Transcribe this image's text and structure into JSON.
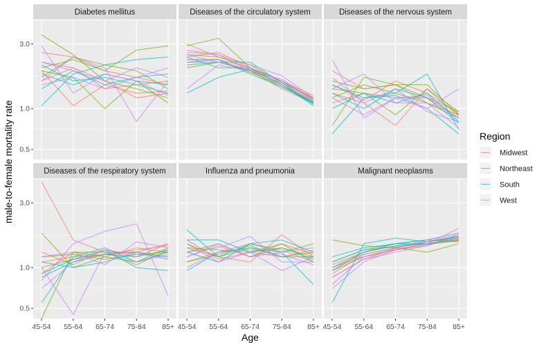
{
  "chart_data": {
    "type": "line",
    "facet_layout": "2x3 grid",
    "scale_y": "log",
    "ylim": [
      0.42,
      4.5
    ],
    "y_ticks": [
      0.5,
      1.0,
      3.0
    ],
    "y_tick_labels": [
      "0.5",
      "1.0",
      "3.0"
    ],
    "categories": [
      "45-54",
      "55-64",
      "65-74",
      "75-84",
      "85+"
    ],
    "xlabel": "Age",
    "ylabel": "male-to-female mortality rate",
    "grid": true,
    "legend": {
      "title": "Region",
      "placement": "right",
      "entries": [
        "Midwest",
        "Northeast",
        "South",
        "West"
      ]
    },
    "colors": {
      "Midwest": "#F8766D",
      "Northeast": "#7CAE00",
      "South": "#00BFC4",
      "West": "#C77CFF",
      "panel_background": "#EBEBEB",
      "strip_background": "#D9D9D9",
      "grid": "#FFFFFF"
    },
    "facets": [
      {
        "title": "Diabetes mellitus",
        "series": [
          {
            "region": "Midwest",
            "values": [
              2.6,
              2.4,
              1.9,
              1.7,
              1.5
            ]
          },
          {
            "region": "Midwest",
            "values": [
              1.9,
              1.05,
              1.5,
              1.3,
              1.35
            ]
          },
          {
            "region": "Midwest",
            "values": [
              2.2,
              2.0,
              1.6,
              1.2,
              1.3
            ]
          },
          {
            "region": "Midwest",
            "values": [
              1.6,
              2.0,
              1.4,
              1.5,
              1.6
            ]
          },
          {
            "region": "Northeast",
            "values": [
              3.5,
              2.5,
              1.6,
              1.4,
              1.2
            ]
          },
          {
            "region": "Northeast",
            "values": [
              2.0,
              2.3,
              1.9,
              2.7,
              2.9
            ]
          },
          {
            "region": "Northeast",
            "values": [
              1.9,
              1.7,
              1.0,
              1.6,
              1.1
            ]
          },
          {
            "region": "Northeast",
            "values": [
              1.7,
              2.4,
              2.1,
              1.9,
              1.4
            ]
          },
          {
            "region": "South",
            "values": [
              1.05,
              1.8,
              2.1,
              2.3,
              2.4
            ]
          },
          {
            "region": "South",
            "values": [
              2.1,
              1.6,
              1.7,
              1.5,
              1.3
            ]
          },
          {
            "region": "South",
            "values": [
              1.4,
              1.9,
              1.5,
              1.7,
              1.8
            ]
          },
          {
            "region": "South",
            "values": [
              1.8,
              1.5,
              1.8,
              1.6,
              1.5
            ]
          },
          {
            "region": "West",
            "values": [
              2.9,
              1.3,
              1.8,
              1.6,
              1.25
            ]
          },
          {
            "region": "West",
            "values": [
              1.6,
              2.4,
              2.0,
              0.8,
              1.6
            ]
          },
          {
            "region": "West",
            "values": [
              2.2,
              1.9,
              1.6,
              2.0,
              1.7
            ]
          },
          {
            "region": "West",
            "values": [
              1.5,
              1.7,
              1.4,
              1.7,
              2.0
            ]
          }
        ]
      },
      {
        "title": "Diseases of the circulatory system",
        "series": [
          {
            "region": "Midwest",
            "values": [
              2.7,
              2.5,
              1.9,
              1.55,
              1.2
            ]
          },
          {
            "region": "Midwest",
            "values": [
              2.4,
              2.6,
              2.0,
              1.5,
              1.15
            ]
          },
          {
            "region": "Midwest",
            "values": [
              2.2,
              2.2,
              1.9,
              1.4,
              1.1
            ]
          },
          {
            "region": "Midwest",
            "values": [
              3.0,
              2.4,
              2.0,
              1.6,
              1.25
            ]
          },
          {
            "region": "Northeast",
            "values": [
              2.9,
              3.3,
              2.0,
              1.6,
              1.2
            ]
          },
          {
            "region": "Northeast",
            "values": [
              2.5,
              2.4,
              2.1,
              1.55,
              1.18
            ]
          },
          {
            "region": "Northeast",
            "values": [
              2.3,
              2.3,
              1.85,
              1.5,
              1.1
            ]
          },
          {
            "region": "Northeast",
            "values": [
              2.0,
              2.2,
              1.9,
              1.45,
              1.12
            ]
          },
          {
            "region": "South",
            "values": [
              1.3,
              1.7,
              1.95,
              1.5,
              1.05
            ]
          },
          {
            "region": "South",
            "values": [
              2.1,
              2.2,
              2.2,
              1.55,
              1.1
            ]
          },
          {
            "region": "South",
            "values": [
              2.4,
              2.0,
              2.0,
              1.5,
              1.08
            ]
          },
          {
            "region": "South",
            "values": [
              2.2,
              2.3,
              1.8,
              1.45,
              1.1
            ]
          },
          {
            "region": "West",
            "values": [
              1.4,
              2.1,
              1.9,
              1.65,
              1.15
            ]
          },
          {
            "region": "West",
            "values": [
              2.6,
              2.5,
              2.1,
              1.75,
              1.2
            ]
          },
          {
            "region": "West",
            "values": [
              2.3,
              2.3,
              2.0,
              1.5,
              1.13
            ]
          },
          {
            "region": "West",
            "values": [
              2.5,
              2.2,
              1.95,
              1.6,
              1.15
            ]
          }
        ]
      },
      {
        "title": "Diseases of the nervous system",
        "series": [
          {
            "region": "Midwest",
            "values": [
              1.3,
              1.1,
              0.75,
              1.4,
              0.95
            ]
          },
          {
            "region": "Midwest",
            "values": [
              1.9,
              1.4,
              1.5,
              1.1,
              0.9
            ]
          },
          {
            "region": "Midwest",
            "values": [
              1.1,
              1.3,
              1.2,
              1.2,
              0.85
            ]
          },
          {
            "region": "Midwest",
            "values": [
              1.5,
              1.15,
              1.6,
              1.3,
              0.92
            ]
          },
          {
            "region": "Northeast",
            "values": [
              0.75,
              1.7,
              1.5,
              1.5,
              0.9
            ]
          },
          {
            "region": "Northeast",
            "values": [
              1.4,
              1.3,
              0.9,
              1.4,
              0.88
            ]
          },
          {
            "region": "Northeast",
            "values": [
              1.2,
              1.5,
              1.3,
              1.1,
              0.85
            ]
          },
          {
            "region": "Northeast",
            "values": [
              1.6,
              1.4,
              1.5,
              1.2,
              0.95
            ]
          },
          {
            "region": "South",
            "values": [
              0.65,
              1.2,
              1.3,
              1.8,
              0.7
            ]
          },
          {
            "region": "South",
            "values": [
              1.3,
              1.0,
              1.4,
              1.2,
              0.78
            ]
          },
          {
            "region": "South",
            "values": [
              1.0,
              1.3,
              1.1,
              1.3,
              0.8
            ]
          },
          {
            "region": "South",
            "values": [
              1.5,
              1.2,
              1.25,
              1.0,
              0.65
            ]
          },
          {
            "region": "West",
            "values": [
              2.3,
              0.85,
              1.2,
              1.0,
              1.4
            ]
          },
          {
            "region": "West",
            "values": [
              1.4,
              1.8,
              1.1,
              1.1,
              0.72
            ]
          },
          {
            "region": "West",
            "values": [
              1.7,
              1.1,
              1.4,
              0.95,
              0.8
            ]
          },
          {
            "region": "West",
            "values": [
              1.2,
              0.9,
              1.2,
              1.25,
              0.85
            ]
          }
        ]
      },
      {
        "title": "Diseases of the respiratory system",
        "series": [
          {
            "region": "Midwest",
            "values": [
              4.3,
              1.6,
              1.3,
              1.3,
              1.5
            ]
          },
          {
            "region": "Midwest",
            "values": [
              1.1,
              1.2,
              1.25,
              1.35,
              1.45
            ]
          },
          {
            "region": "Midwest",
            "values": [
              0.9,
              1.3,
              1.2,
              1.4,
              1.3
            ]
          },
          {
            "region": "Midwest",
            "values": [
              1.3,
              1.05,
              1.35,
              1.2,
              1.5
            ]
          },
          {
            "region": "Northeast",
            "values": [
              1.8,
              1.0,
              1.2,
              1.1,
              1.4
            ]
          },
          {
            "region": "Northeast",
            "values": [
              0.42,
              1.3,
              1.3,
              1.05,
              1.35
            ]
          },
          {
            "region": "Northeast",
            "values": [
              1.0,
              1.15,
              1.25,
              1.3,
              1.2
            ]
          },
          {
            "region": "Northeast",
            "values": [
              1.2,
              1.25,
              1.15,
              1.25,
              1.3
            ]
          },
          {
            "region": "South",
            "values": [
              0.55,
              1.2,
              1.4,
              1.1,
              1.3
            ]
          },
          {
            "region": "South",
            "values": [
              0.9,
              1.15,
              1.35,
              1.0,
              0.95
            ]
          },
          {
            "region": "South",
            "values": [
              1.1,
              1.0,
              1.1,
              1.3,
              1.15
            ]
          },
          {
            "region": "South",
            "values": [
              0.85,
              1.1,
              1.25,
              1.2,
              1.35
            ]
          },
          {
            "region": "West",
            "values": [
              0.8,
              1.5,
              1.85,
              2.1,
              0.62
            ]
          },
          {
            "region": "West",
            "values": [
              1.0,
              0.45,
              1.3,
              1.1,
              1.25
            ]
          },
          {
            "region": "West",
            "values": [
              1.2,
              1.3,
              1.05,
              1.55,
              1.4
            ]
          },
          {
            "region": "West",
            "values": [
              0.7,
              1.1,
              1.35,
              1.25,
              1.2
            ]
          }
        ]
      },
      {
        "title": "Influenza and pneumonia",
        "series": [
          {
            "region": "Midwest",
            "values": [
              1.4,
              1.2,
              1.1,
              1.75,
              1.2
            ]
          },
          {
            "region": "Midwest",
            "values": [
              1.1,
              1.3,
              1.5,
              1.35,
              1.1
            ]
          },
          {
            "region": "Midwest",
            "values": [
              1.6,
              1.15,
              1.3,
              1.2,
              1.35
            ]
          },
          {
            "region": "Midwest",
            "values": [
              1.2,
              1.45,
              1.2,
              1.5,
              1.25
            ]
          },
          {
            "region": "Northeast",
            "values": [
              1.5,
              1.2,
              1.4,
              1.3,
              1.5
            ]
          },
          {
            "region": "Northeast",
            "values": [
              1.3,
              1.5,
              1.2,
              1.4,
              1.2
            ]
          },
          {
            "region": "Northeast",
            "values": [
              1.1,
              1.25,
              1.45,
              1.2,
              1.3
            ]
          },
          {
            "region": "Northeast",
            "values": [
              1.4,
              1.35,
              1.3,
              1.5,
              1.1
            ]
          },
          {
            "region": "South",
            "values": [
              1.9,
              1.2,
              1.5,
              1.3,
              0.75
            ]
          },
          {
            "region": "South",
            "values": [
              0.95,
              1.3,
              1.4,
              1.2,
              1.2
            ]
          },
          {
            "region": "South",
            "values": [
              1.6,
              1.6,
              1.3,
              1.4,
              1.15
            ]
          },
          {
            "region": "South",
            "values": [
              1.3,
              1.1,
              1.5,
              1.6,
              1.3
            ]
          },
          {
            "region": "West",
            "values": [
              1.3,
              1.4,
              1.7,
              1.1,
              1.1
            ]
          },
          {
            "region": "West",
            "values": [
              1.5,
              1.1,
              1.3,
              0.95,
              1.2
            ]
          },
          {
            "region": "West",
            "values": [
              1.2,
              1.5,
              1.2,
              1.3,
              1.4
            ]
          },
          {
            "region": "West",
            "values": [
              1.0,
              1.3,
              1.35,
              1.25,
              1.05
            ]
          }
        ]
      },
      {
        "title": "Malignant neoplasms",
        "series": [
          {
            "region": "Midwest",
            "values": [
              1.0,
              1.2,
              1.35,
              1.5,
              1.6
            ]
          },
          {
            "region": "Midwest",
            "values": [
              0.9,
              1.25,
              1.4,
              1.55,
              1.65
            ]
          },
          {
            "region": "Midwest",
            "values": [
              0.85,
              1.15,
              1.38,
              1.48,
              1.58
            ]
          },
          {
            "region": "Midwest",
            "values": [
              1.05,
              1.3,
              1.45,
              1.5,
              1.62
            ]
          },
          {
            "region": "Northeast",
            "values": [
              1.6,
              1.45,
              1.4,
              1.3,
              1.5
            ]
          },
          {
            "region": "Northeast",
            "values": [
              1.0,
              1.3,
              1.5,
              1.6,
              1.55
            ]
          },
          {
            "region": "Northeast",
            "values": [
              0.95,
              1.2,
              1.35,
              1.45,
              1.75
            ]
          },
          {
            "region": "Northeast",
            "values": [
              1.1,
              1.35,
              1.42,
              1.5,
              1.65
            ]
          },
          {
            "region": "South",
            "values": [
              0.55,
              1.5,
              1.65,
              1.55,
              1.7
            ]
          },
          {
            "region": "South",
            "values": [
              1.2,
              1.4,
              1.5,
              1.6,
              1.8
            ]
          },
          {
            "region": "South",
            "values": [
              0.95,
              1.3,
              1.45,
              1.55,
              1.68
            ]
          },
          {
            "region": "South",
            "values": [
              1.1,
              1.35,
              1.5,
              1.5,
              1.6
            ]
          },
          {
            "region": "West",
            "values": [
              0.7,
              1.1,
              1.35,
              1.5,
              1.95
            ]
          },
          {
            "region": "West",
            "values": [
              0.75,
              1.2,
              1.4,
              1.6,
              1.8
            ]
          },
          {
            "region": "West",
            "values": [
              0.85,
              1.15,
              1.3,
              1.45,
              1.7
            ]
          },
          {
            "region": "West",
            "values": [
              1.0,
              1.25,
              1.4,
              1.55,
              1.75
            ]
          }
        ]
      }
    ]
  }
}
